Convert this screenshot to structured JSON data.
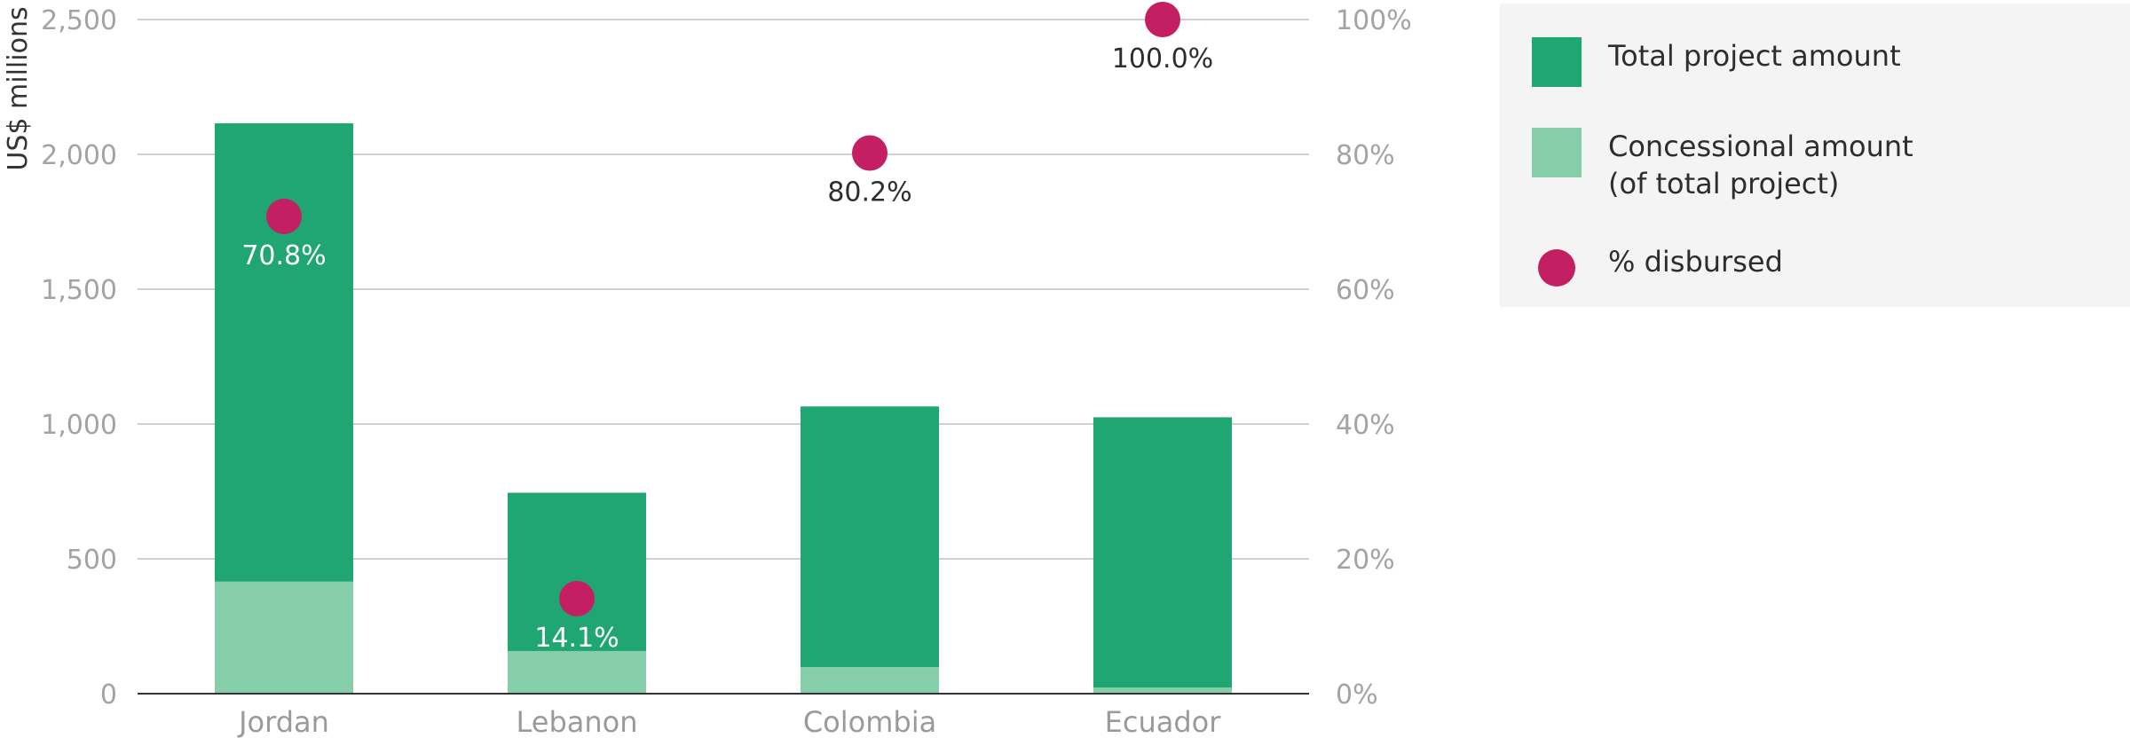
{
  "chart_data": {
    "type": "bar",
    "subtype": "stacked bar with secondary-axis points",
    "categories": [
      "Jordan",
      "Lebanon",
      "Colombia",
      "Ecuador"
    ],
    "ylabel": "US$ millions",
    "ylim": [
      0,
      2500
    ],
    "yticks": [
      "0",
      "500",
      "1,000",
      "1,500",
      "2,000",
      "2,500"
    ],
    "y2lim": [
      0,
      100
    ],
    "y2ticks": [
      "0%",
      "20%",
      "40%",
      "60%",
      "80%",
      "100%"
    ],
    "grid": true,
    "legend_position": "right",
    "series": [
      {
        "name": "Total project amount",
        "kind": "bar",
        "color": "#1fa672",
        "values": [
          2115,
          745,
          1065,
          1025
        ]
      },
      {
        "name": "Concessional amount (of total project)",
        "kind": "bar",
        "color": "#86cdaa",
        "values": [
          415,
          158,
          98,
          22
        ]
      },
      {
        "name": "% disbursed",
        "kind": "point",
        "axis": "right",
        "color": "#c41f63",
        "values": [
          70.8,
          14.1,
          80.2,
          100.0
        ],
        "labels": [
          "70.8%",
          "14.1%",
          "80.2%",
          "100.0%"
        ]
      }
    ]
  },
  "legend": {
    "items": [
      {
        "label": "Total project amount",
        "kind": "square",
        "color": "#1fa672"
      },
      {
        "label": "Concessional amount\n(of total project)",
        "kind": "square",
        "color": "#86cdaa"
      },
      {
        "label": "% disbursed",
        "kind": "dot",
        "color": "#c41f63"
      }
    ]
  }
}
